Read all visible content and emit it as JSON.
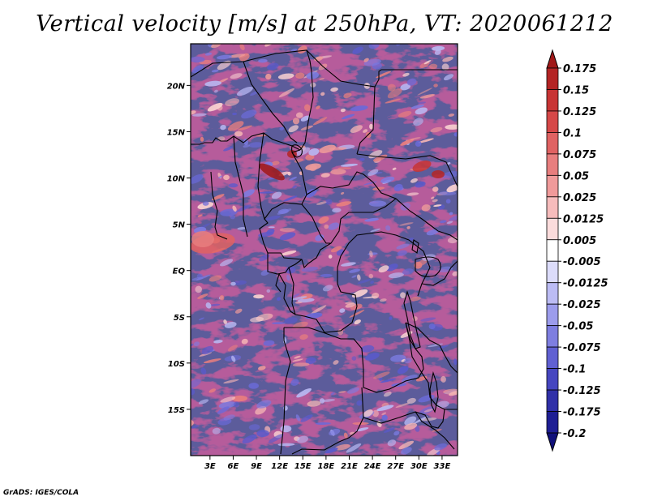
{
  "title": "Vertical velocity [m/s] at 250hPa, VT: 2020061212",
  "credit": "GrADS: IGES/COLA",
  "map": {
    "lat_labels": [
      "20N",
      "15N",
      "10N",
      "5N",
      "EQ",
      "5S",
      "10S",
      "15S"
    ],
    "lat_values": [
      20,
      15,
      10,
      5,
      0,
      -5,
      -10,
      -15
    ],
    "lon_labels": [
      "3E",
      "6E",
      "9E",
      "12E",
      "15E",
      "18E",
      "21E",
      "24E",
      "27E",
      "30E",
      "33E"
    ],
    "lon_values": [
      3,
      6,
      9,
      12,
      15,
      18,
      21,
      24,
      27,
      30,
      33
    ],
    "lat_range": [
      -20,
      24.5
    ],
    "lon_range": [
      0.5,
      35
    ]
  },
  "colorbar": {
    "labels": [
      "0.175",
      "0.15",
      "0.125",
      "0.1",
      "0.075",
      "0.05",
      "0.025",
      "0.0125",
      "0.005",
      "-0.005",
      "-0.0125",
      "-0.025",
      "-0.05",
      "-0.075",
      "-0.1",
      "-0.125",
      "-0.175",
      "-0.2"
    ],
    "colors": [
      "#a01818",
      "#b42424",
      "#c83434",
      "#d64848",
      "#e06262",
      "#e87e7e",
      "#f09a9a",
      "#f6bcbc",
      "#fbdcdc",
      "#ffffff",
      "#dcdcfa",
      "#bcbcf4",
      "#9c9cec",
      "#7e7ee0",
      "#6060d2",
      "#4646c0",
      "#3030a8",
      "#1e1e94",
      "#10107a"
    ]
  }
}
